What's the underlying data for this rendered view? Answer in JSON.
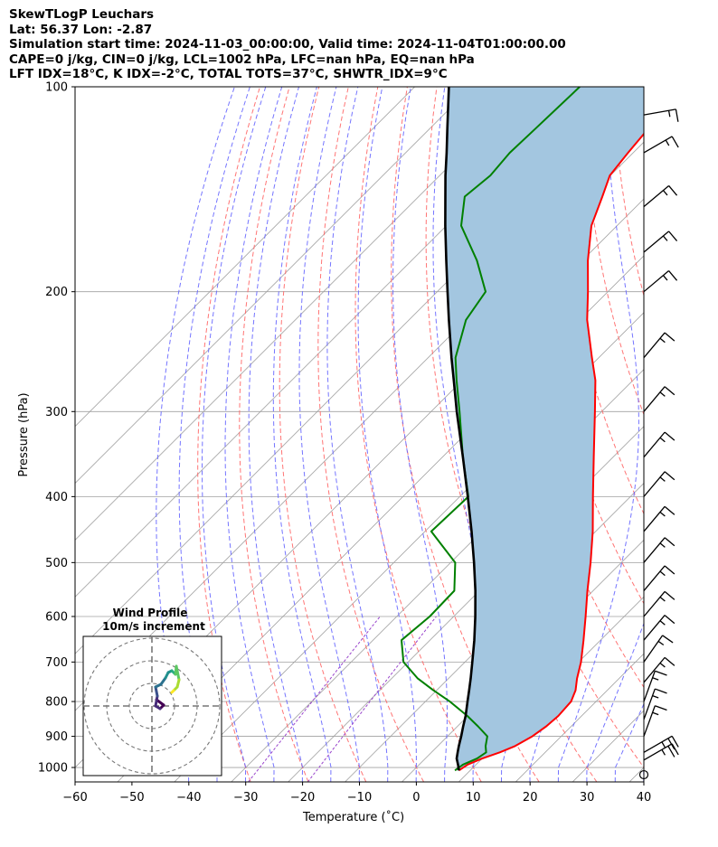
{
  "header": {
    "line1": "SkewTLogP Leuchars",
    "line2": "Lat: 56.37   Lon: -2.87",
    "line3": "Simulation start time: 2024-11-03_00:00:00, Valid time: 2024-11-04T01:00:00.00",
    "line4": "CAPE=0 j/kg, CIN=0 j/kg, LCL=1002 hPa, LFC=nan hPa, EQ=nan hPa",
    "line5": "LFT IDX=18°C, K IDX=-2°C, TOTAL TOTS=37°C, SHWTR_IDX=9°C"
  },
  "colors": {
    "temperature": "#ff0000",
    "dewpoint": "#008000",
    "parcel": "#000000",
    "cape_fill": "#a3c6e0",
    "dry_adiabat": "#ff6666",
    "moist_adiabat": "#6666ff",
    "isotherm": "#a0a0a0",
    "mixing_ratio": "#9944cc"
  },
  "chart_data": {
    "type": "line",
    "subtype": "skew-T log-P",
    "xlabel": "Temperature (˚C)",
    "ylabel": "Pressure (hPa)",
    "xlim": [
      -60,
      40
    ],
    "ylim": [
      1050,
      100
    ],
    "x_ticks": [
      "−60",
      "−50",
      "−40",
      "−30",
      "−20",
      "−10",
      "0",
      "10",
      "20",
      "30",
      "40"
    ],
    "y_ticks": [
      "100",
      "200",
      "300",
      "400",
      "500",
      "600",
      "700",
      "800",
      "900",
      "1000"
    ],
    "grid": true,
    "series": [
      {
        "key": "temperature",
        "pressure": [
          1010,
          990,
          970,
          950,
          930,
          900,
          870,
          840,
          800,
          770,
          740,
          700,
          650,
          600,
          550,
          500,
          450,
          400,
          350,
          300,
          270,
          250,
          220,
          200,
          180,
          160,
          145,
          135,
          125,
          115,
          100
        ],
        "values": [
          8,
          8.5,
          10,
          12,
          13.6,
          14.9,
          15.6,
          15.9,
          15.6,
          14.4,
          12.6,
          10.4,
          7,
          3.2,
          -1,
          -5.4,
          -10.5,
          -16.6,
          -23.4,
          -31.2,
          -36.6,
          -41.2,
          -48.7,
          -53.5,
          -59,
          -64.5,
          -67.7,
          -70.1,
          -70.9,
          -71.6,
          -72
        ]
      },
      {
        "key": "dewpoint",
        "pressure": [
          1010,
          990,
          970,
          950,
          930,
          900,
          870,
          840,
          800,
          770,
          740,
          700,
          650,
          600,
          550,
          500,
          450,
          400,
          350,
          300,
          270,
          250,
          220,
          200,
          180,
          160,
          145,
          135,
          125,
          115,
          100
        ],
        "values": [
          7.3,
          7.7,
          9.1,
          9.6,
          8.4,
          7,
          3.6,
          -0.1,
          -5.7,
          -10.6,
          -15.4,
          -20.8,
          -25,
          -24.2,
          -24.4,
          -29.2,
          -38.9,
          -38.5,
          -46.4,
          -55,
          -61,
          -65.2,
          -70,
          -71.5,
          -78.5,
          -87.4,
          -91.9,
          -91.1,
          -91.7,
          -91.4,
          -91
        ]
      },
      {
        "key": "parcel",
        "pressure": [
          1010,
          990,
          970,
          950,
          930,
          900,
          870,
          840,
          800,
          770,
          740,
          700,
          650,
          600,
          550,
          500,
          450,
          400,
          350,
          300,
          270,
          250,
          220,
          200,
          180,
          160,
          145,
          135,
          125,
          115,
          100
        ],
        "values": [
          8,
          6.8,
          5.5,
          4.6,
          3.7,
          2.4,
          1,
          -0.4,
          -2.6,
          -4.3,
          -6.1,
          -8.7,
          -12.2,
          -16.2,
          -20.7,
          -25.9,
          -31.8,
          -38.6,
          -46.4,
          -55.5,
          -61.5,
          -65.9,
          -73,
          -78.2,
          -83.9,
          -90.2,
          -95.3,
          -99,
          -102.8,
          -107,
          -114
        ]
      }
    ],
    "wind_barbs": [
      {
        "pressure": 1000,
        "speed_kt": 5,
        "direction_deg": 270
      },
      {
        "pressure": 975,
        "speed_kt": 25,
        "direction_deg": 240
      },
      {
        "pressure": 950,
        "speed_kt": 25,
        "direction_deg": 240
      },
      {
        "pressure": 900,
        "speed_kt": 15,
        "direction_deg": 200
      },
      {
        "pressure": 850,
        "speed_kt": 15,
        "direction_deg": 200
      },
      {
        "pressure": 800,
        "speed_kt": 15,
        "direction_deg": 200
      },
      {
        "pressure": 750,
        "speed_kt": 15,
        "direction_deg": 220
      },
      {
        "pressure": 700,
        "speed_kt": 15,
        "direction_deg": 215
      },
      {
        "pressure": 650,
        "speed_kt": 15,
        "direction_deg": 220
      },
      {
        "pressure": 600,
        "speed_kt": 15,
        "direction_deg": 220
      },
      {
        "pressure": 550,
        "speed_kt": 15,
        "direction_deg": 220
      },
      {
        "pressure": 500,
        "speed_kt": 15,
        "direction_deg": 220
      },
      {
        "pressure": 450,
        "speed_kt": 15,
        "direction_deg": 220
      },
      {
        "pressure": 400,
        "speed_kt": 15,
        "direction_deg": 220
      },
      {
        "pressure": 350,
        "speed_kt": 15,
        "direction_deg": 220
      },
      {
        "pressure": 300,
        "speed_kt": 15,
        "direction_deg": 220
      },
      {
        "pressure": 250,
        "speed_kt": 15,
        "direction_deg": 220
      },
      {
        "pressure": 200,
        "speed_kt": 15,
        "direction_deg": 230
      },
      {
        "pressure": 175,
        "speed_kt": 15,
        "direction_deg": 230
      },
      {
        "pressure": 150,
        "speed_kt": 15,
        "direction_deg": 230
      },
      {
        "pressure": 125,
        "speed_kt": 15,
        "direction_deg": 240
      },
      {
        "pressure": 110,
        "speed_kt": 15,
        "direction_deg": 260
      }
    ],
    "inset": {
      "title": "Wind Profile",
      "subtitle": "10m/s increment",
      "type": "hodograph"
    }
  }
}
